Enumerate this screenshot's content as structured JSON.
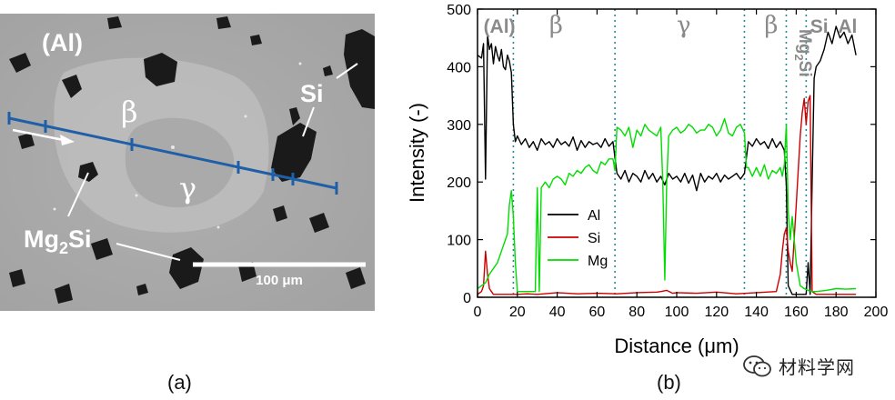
{
  "micrograph": {
    "phase_labels": [
      "(Al)",
      "β",
      "Si",
      "γ"
    ],
    "mg2si_main": "Mg",
    "mg2si_sub": "2",
    "mg2si_tail": "Si",
    "scale_bar_label": "100 μm"
  },
  "panel_labels": {
    "a": "(a)",
    "b": "(b)"
  },
  "watermark": {
    "text": "材料学网"
  },
  "chart_data": {
    "type": "line",
    "xlabel": "Distance (μm)",
    "ylabel": "Intensity (-)",
    "xlim": [
      0,
      200
    ],
    "ylim": [
      0,
      500
    ],
    "xticks": [
      0,
      20,
      40,
      60,
      80,
      100,
      120,
      140,
      160,
      180,
      200
    ],
    "yticks": [
      0,
      100,
      200,
      300,
      400,
      500
    ],
    "region_boundaries": [
      18,
      69,
      134,
      155,
      165
    ],
    "region_labels": [
      {
        "text": "(Al)",
        "x": 3
      },
      {
        "text": "β",
        "x": 36
      },
      {
        "text": "γ",
        "x": 100
      },
      {
        "text": "β",
        "x": 144
      },
      {
        "text": "Si",
        "x": 167
      },
      {
        "text": "Al",
        "x": 181
      }
    ],
    "region_vertical_label": {
      "main": "Mg",
      "sub": "2",
      "tail": "Si",
      "x": 159
    },
    "legend": {
      "position": "center-left",
      "entries": [
        "Al",
        "Si",
        "Mg"
      ]
    },
    "series": [
      {
        "name": "Al",
        "color": "#000000",
        "x": [
          0,
          2,
          3,
          4,
          5,
          6,
          7,
          8,
          9,
          10,
          11,
          12,
          13,
          14,
          15,
          16,
          17,
          18,
          19,
          20,
          22,
          24,
          26,
          28,
          30,
          32,
          34,
          36,
          38,
          40,
          42,
          44,
          46,
          48,
          50,
          52,
          54,
          56,
          58,
          60,
          62,
          64,
          66,
          68,
          70,
          72,
          74,
          76,
          78,
          80,
          82,
          84,
          86,
          88,
          90,
          92,
          94,
          96,
          98,
          100,
          102,
          104,
          106,
          108,
          110,
          112,
          114,
          116,
          118,
          120,
          122,
          124,
          126,
          128,
          130,
          132,
          134,
          136,
          138,
          140,
          142,
          144,
          146,
          148,
          150,
          152,
          154,
          155,
          156,
          158,
          160,
          162,
          164,
          165,
          166,
          167,
          168,
          169,
          170,
          172,
          174,
          176,
          178,
          180,
          182,
          184,
          186,
          188,
          190
        ],
        "y": [
          420,
          415,
          440,
          205,
          455,
          430,
          440,
          405,
          435,
          420,
          410,
          430,
          400,
          395,
          420,
          410,
          390,
          300,
          270,
          280,
          265,
          275,
          260,
          270,
          255,
          275,
          265,
          270,
          260,
          275,
          265,
          270,
          262,
          278,
          255,
          272,
          260,
          270,
          265,
          268,
          260,
          275,
          262,
          270,
          215,
          205,
          220,
          200,
          215,
          210,
          200,
          220,
          205,
          215,
          200,
          210,
          195,
          215,
          205,
          210,
          200,
          215,
          198,
          212,
          185,
          215,
          200,
          210,
          205,
          215,
          200,
          212,
          205,
          210,
          215,
          205,
          215,
          270,
          262,
          275,
          265,
          270,
          258,
          275,
          260,
          270,
          255,
          195,
          20,
          5,
          5,
          5,
          5,
          5,
          60,
          5,
          200,
          380,
          400,
          410,
          430,
          460,
          440,
          470,
          450,
          460,
          440,
          455,
          420
        ]
      },
      {
        "name": "Si",
        "color": "#cc0000",
        "x": [
          0,
          2,
          3,
          4,
          5,
          6,
          7,
          8,
          10,
          15,
          20,
          25,
          30,
          40,
          50,
          60,
          70,
          80,
          90,
          92,
          95,
          98,
          100,
          110,
          120,
          130,
          140,
          150,
          152,
          153,
          154,
          155,
          156,
          157,
          158,
          160,
          162,
          163,
          164,
          165,
          166,
          167,
          168,
          170,
          175,
          180,
          185,
          190
        ],
        "y": [
          5,
          10,
          20,
          80,
          40,
          15,
          10,
          5,
          5,
          5,
          5,
          6,
          5,
          8,
          6,
          7,
          6,
          8,
          9,
          10,
          12,
          7,
          8,
          7,
          9,
          6,
          8,
          10,
          40,
          80,
          110,
          120,
          80,
          60,
          45,
          160,
          280,
          320,
          345,
          300,
          340,
          350,
          10,
          5,
          5,
          5,
          5,
          5
        ]
      },
      {
        "name": "Mg",
        "color": "#00dd00",
        "x": [
          0,
          2,
          4,
          6,
          8,
          10,
          12,
          14,
          15,
          16,
          17,
          18,
          19,
          20,
          21,
          22,
          23,
          24,
          25,
          26,
          27,
          28,
          29,
          30,
          31,
          32,
          34,
          36,
          38,
          40,
          42,
          44,
          46,
          48,
          50,
          52,
          54,
          56,
          58,
          60,
          62,
          64,
          66,
          68,
          69,
          70,
          72,
          74,
          76,
          78,
          80,
          82,
          84,
          86,
          88,
          90,
          92,
          93,
          94,
          95,
          96,
          98,
          100,
          102,
          104,
          106,
          108,
          110,
          112,
          114,
          116,
          118,
          120,
          122,
          124,
          126,
          128,
          130,
          132,
          134,
          135,
          136,
          138,
          140,
          142,
          144,
          146,
          148,
          150,
          152,
          153,
          154,
          155,
          156,
          157,
          158,
          160,
          162,
          164,
          166,
          168,
          170,
          175,
          180,
          185,
          190
        ],
        "y": [
          15,
          20,
          25,
          40,
          50,
          60,
          80,
          100,
          110,
          160,
          185,
          140,
          60,
          10,
          10,
          10,
          10,
          10,
          10,
          10,
          10,
          10,
          10,
          190,
          10,
          190,
          200,
          190,
          205,
          210,
          205,
          195,
          215,
          210,
          220,
          215,
          225,
          230,
          220,
          215,
          235,
          230,
          240,
          240,
          220,
          295,
          290,
          280,
          295,
          260,
          290,
          280,
          300,
          290,
          285,
          280,
          295,
          200,
          30,
          200,
          280,
          290,
          295,
          285,
          290,
          300,
          295,
          285,
          290,
          290,
          300,
          295,
          280,
          290,
          310,
          285,
          280,
          295,
          300,
          285,
          225,
          225,
          210,
          225,
          210,
          230,
          205,
          220,
          215,
          225,
          210,
          230,
          300,
          150,
          100,
          140,
          60,
          20,
          15,
          12,
          10,
          10,
          12,
          15,
          14,
          15
        ]
      }
    ]
  }
}
